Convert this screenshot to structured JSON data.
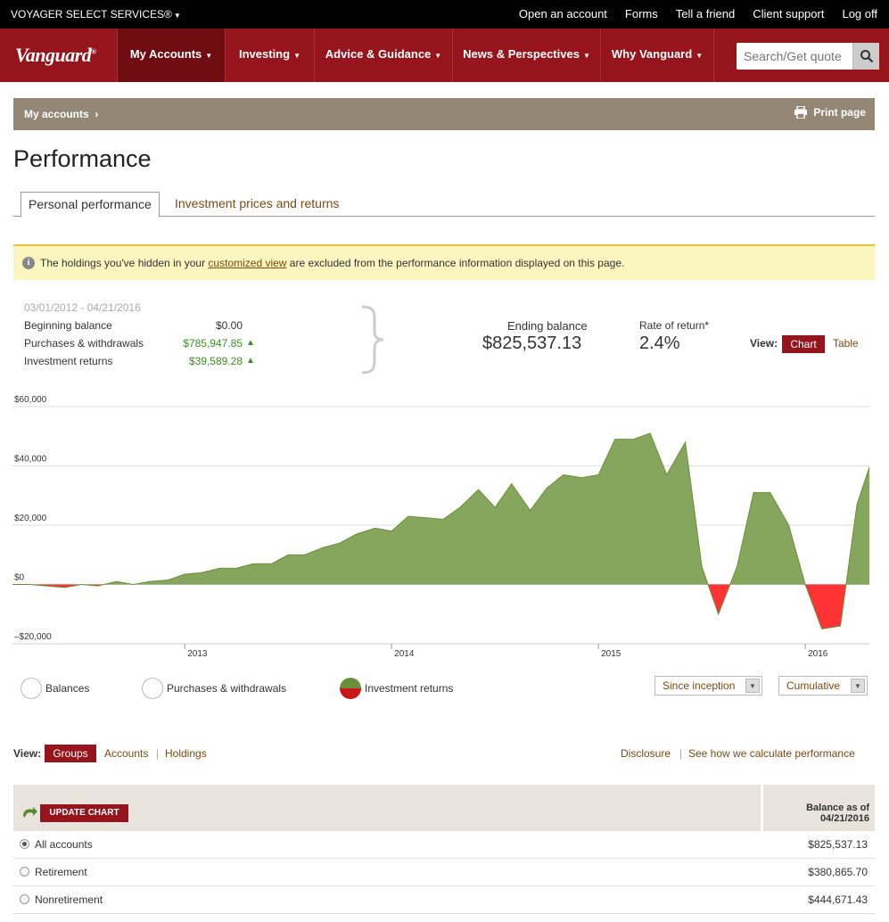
{
  "utility": {
    "org": "VOYAGER SELECT SERVICES®",
    "links": [
      "Open an account",
      "Forms",
      "Tell a friend",
      "Client support",
      "Log off"
    ]
  },
  "brand": {
    "logo": "Vanguard",
    "mark": "®"
  },
  "nav": {
    "items": [
      "My Accounts",
      "Investing",
      "Advice & Guidance",
      "News & Perspectives",
      "Why Vanguard"
    ],
    "active": "My Accounts",
    "search_placeholder": "Search/Get quote"
  },
  "breadcrumb": {
    "label": "My accounts",
    "separator": "›",
    "print": "Print page"
  },
  "page": {
    "title": "Performance"
  },
  "tabs": {
    "active": "Personal performance",
    "inactive": "Investment prices and returns"
  },
  "alert": {
    "prefix": "The holdings you've hidden in your ",
    "link": "customized view",
    "suffix": " are excluded from the performance information displayed on this page."
  },
  "summary": {
    "date_range": "03/01/2012 - 04/21/2016",
    "beginning_label": "Beginning balance",
    "beginning_value": "$0.00",
    "purchases_label": "Purchases & withdrawals",
    "purchases_value": "$785,947.85",
    "returns_label": "Investment returns",
    "returns_value": "$39,589.28",
    "ending_label": "Ending balance",
    "ending_value": "$825,537.13",
    "rate_label": "Rate of return*",
    "rate_value": "2.4%",
    "view_label": "View:",
    "view_chart": "Chart",
    "view_table": "Table"
  },
  "chart_data": {
    "type": "area",
    "ylim": [
      -20000,
      60000
    ],
    "ytick_labels": [
      "$60,000",
      "$40,000",
      "$20,000",
      "$0",
      "–$20,000"
    ],
    "ytick_values": [
      60000,
      40000,
      20000,
      0,
      -20000
    ],
    "xtick_labels": [
      "2013",
      "2014",
      "2015",
      "2016"
    ],
    "xtick_values": [
      2013.0,
      2014.0,
      2015.0,
      2016.0
    ],
    "xlim": [
      2012.167,
      2016.31
    ],
    "series": [
      {
        "name": "Investment returns",
        "x": [
          2012.167,
          2012.25,
          2012.33,
          2012.42,
          2012.5,
          2012.58,
          2012.67,
          2012.75,
          2012.83,
          2012.92,
          2013.0,
          2013.08,
          2013.17,
          2013.25,
          2013.33,
          2013.42,
          2013.5,
          2013.58,
          2013.67,
          2013.75,
          2013.83,
          2013.92,
          2014.0,
          2014.08,
          2014.17,
          2014.25,
          2014.33,
          2014.42,
          2014.5,
          2014.58,
          2014.67,
          2014.75,
          2014.83,
          2014.92,
          2015.0,
          2015.08,
          2015.17,
          2015.25,
          2015.33,
          2015.42,
          2015.5,
          2015.58,
          2015.67,
          2015.75,
          2015.83,
          2015.92,
          2016.0,
          2016.08,
          2016.17,
          2016.25,
          2016.31
        ],
        "values": [
          0,
          0,
          -500,
          -1000,
          0,
          -500,
          1000,
          0,
          1000,
          1500,
          3500,
          4000,
          5500,
          5500,
          7000,
          7000,
          10000,
          10000,
          12500,
          14000,
          17000,
          19000,
          18000,
          23000,
          22500,
          22000,
          26000,
          32000,
          26000,
          34000,
          25000,
          32500,
          37000,
          36000,
          37000,
          49000,
          49000,
          51000,
          37000,
          48000,
          6000,
          -10000,
          6000,
          31000,
          31000,
          20000,
          0,
          -15000,
          -14000,
          27000,
          39589
        ]
      }
    ],
    "colors": {
      "positive": "#86a65d",
      "negative": "#ff3333",
      "stroke": "#6a8f3a"
    }
  },
  "legend": {
    "balances": "Balances",
    "purchases": "Purchases & withdrawals",
    "returns": "Investment returns",
    "range": "Since inception",
    "mode": "Cumulative"
  },
  "view2": {
    "label": "View:",
    "groups": "Groups",
    "accounts": "Accounts",
    "holdings": "Holdings",
    "sep": "|",
    "disclosure": "Disclosure",
    "how_calc": "See how we calculate performance"
  },
  "groups_table": {
    "update_label": "UPDATE CHART",
    "balance_header_1": "Balance as of",
    "balance_header_2": "04/21/2016",
    "rows": [
      {
        "name": "All accounts",
        "balance": "$825,537.13",
        "selected": true
      },
      {
        "name": "Retirement",
        "balance": "$380,865.70",
        "selected": false
      },
      {
        "name": "Nonretirement",
        "balance": "$444,671.43",
        "selected": false
      }
    ]
  }
}
